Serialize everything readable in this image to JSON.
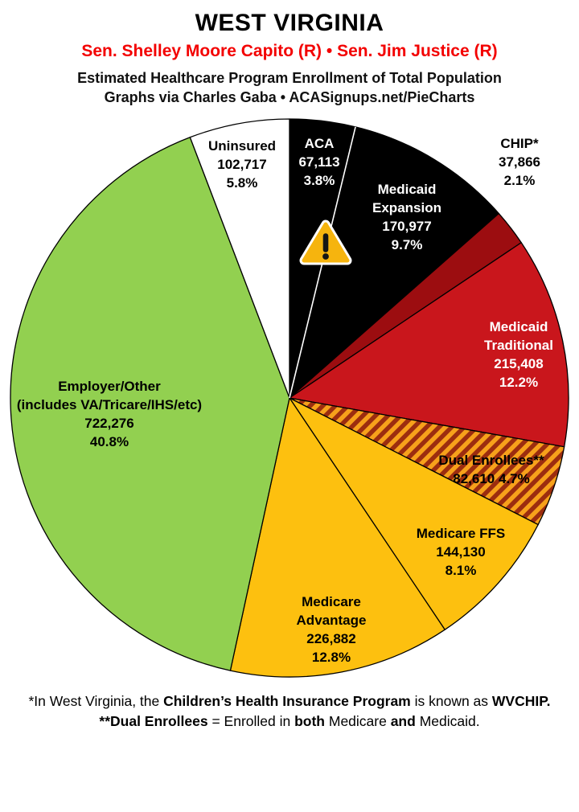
{
  "header": {
    "title": "WEST VIRGINIA",
    "senators": "Sen. Shelley Moore Capito (R) • Sen. Jim Justice (R)",
    "senators_color": "#f30000",
    "subtitle1": "Estimated Healthcare Program Enrollment of Total Population",
    "subtitle2": "Graphs via Charles Gaba • ACASignups.net/PieCharts"
  },
  "chart_data": {
    "type": "pie",
    "title": "Estimated Healthcare Program Enrollment of Total Population",
    "start_angle_deg": 0,
    "direction": "clockwise",
    "slices": [
      {
        "name": "ACA",
        "value": 67113,
        "value_str": "67,113",
        "pct": 3.8,
        "pct_str": "3.8%",
        "color": "#000000",
        "text_color": "#ffffff"
      },
      {
        "name": "Medicaid Expansion",
        "value": 170977,
        "value_str": "170,977",
        "pct": 9.7,
        "pct_str": "9.7%",
        "color": "#000000",
        "text_color": "#ffffff"
      },
      {
        "name": "CHIP*",
        "value": 37866,
        "value_str": "37,866",
        "pct": 2.1,
        "pct_str": "2.1%",
        "color": "#9c0d10",
        "text_color": "#000000"
      },
      {
        "name": "Medicaid Traditional",
        "value": 215408,
        "value_str": "215,408",
        "pct": 12.2,
        "pct_str": "12.2%",
        "color": "#c9161c",
        "text_color": "#ffffff"
      },
      {
        "name": "Dual Enrollees**",
        "value": 82610,
        "value_str": "82,610",
        "pct": 4.7,
        "pct_str": "4.7%",
        "color": "hatch",
        "hatch_colors": [
          "#f7a11b",
          "#9c2d0f"
        ],
        "text_color": "#000000"
      },
      {
        "name": "Medicare FFS",
        "value": 144130,
        "value_str": "144,130",
        "pct": 8.1,
        "pct_str": "8.1%",
        "color": "#fdc00f",
        "text_color": "#000000"
      },
      {
        "name": "Medicare Advantage",
        "value": 226882,
        "value_str": "226,882",
        "pct": 12.8,
        "pct_str": "12.8%",
        "color": "#fdc00f",
        "text_color": "#000000"
      },
      {
        "name": "Employer/Other",
        "sub": "(includes VA/Tricare/IHS/etc)",
        "value": 722276,
        "value_str": "722,276",
        "pct": 40.8,
        "pct_str": "40.8%",
        "color": "#92d050",
        "text_color": "#000000"
      },
      {
        "name": "Uninsured",
        "value": 102717,
        "value_str": "102,717",
        "pct": 5.8,
        "pct_str": "5.8%",
        "color": "#ffffff",
        "text_color": "#000000"
      }
    ]
  },
  "footnotes": {
    "line1_parts": [
      "*In West Virginia, the ",
      "Children’s Health Insurance Program",
      " is known as ",
      "WVCHIP",
      "."
    ],
    "line2_parts": [
      "**Dual Enrollees",
      " = Enrolled in ",
      "both",
      " Medicare ",
      "and",
      " Medicaid."
    ]
  }
}
